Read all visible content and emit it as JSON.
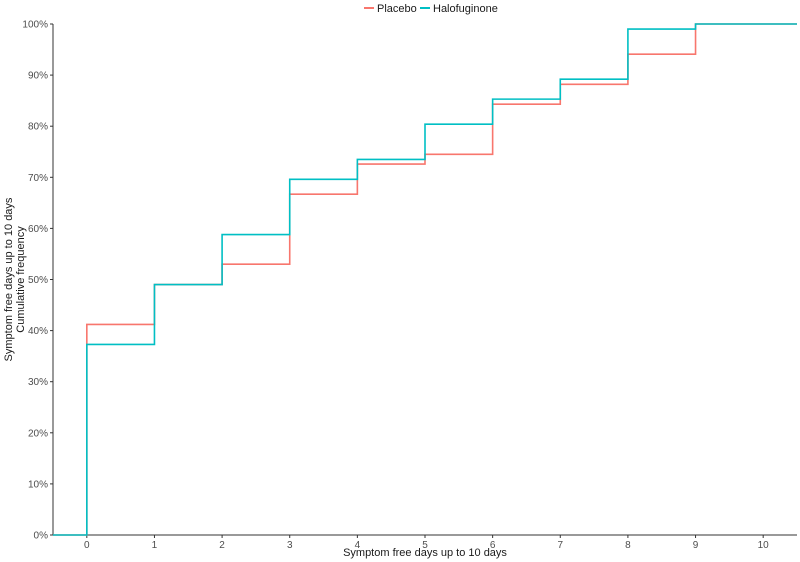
{
  "chart_data": {
    "type": "line",
    "step": true,
    "xlabel": "Symptom free days up to 10 days",
    "ylabel_lines": [
      "Symptom free days up to 10 days",
      "Cumulative frequency"
    ],
    "xlim": [
      -0.5,
      10.5
    ],
    "ylim": [
      0,
      1
    ],
    "x_ticks": [
      0,
      1,
      2,
      3,
      4,
      5,
      6,
      7,
      8,
      9,
      10
    ],
    "x_tick_labels": [
      "0",
      "1",
      "2",
      "3",
      "4",
      "5",
      "6",
      "7",
      "8",
      "9",
      "10"
    ],
    "y_ticks": [
      0,
      0.1,
      0.2,
      0.3,
      0.4,
      0.5,
      0.6,
      0.7,
      0.8,
      0.9,
      1.0
    ],
    "y_tick_labels": [
      "0%",
      "10%",
      "20%",
      "30%",
      "40%",
      "50%",
      "60%",
      "70%",
      "80%",
      "90%",
      "100%"
    ],
    "grid": false,
    "legend": {
      "position": "top"
    },
    "series": [
      {
        "name": "Placebo",
        "color": "#F8766D",
        "x": [
          0,
          1,
          2,
          3,
          4,
          5,
          6,
          7,
          8,
          9,
          10
        ],
        "y": [
          0.412,
          0.49,
          0.53,
          0.667,
          0.726,
          0.745,
          0.843,
          0.882,
          0.941,
          1.0,
          1.0
        ]
      },
      {
        "name": "Halofuginone",
        "color": "#00BFC4",
        "x": [
          0,
          1,
          2,
          3,
          4,
          5,
          6,
          7,
          8,
          9,
          10
        ],
        "y": [
          0.373,
          0.49,
          0.588,
          0.696,
          0.735,
          0.804,
          0.853,
          0.892,
          0.99,
          1.0,
          1.0
        ]
      }
    ]
  }
}
